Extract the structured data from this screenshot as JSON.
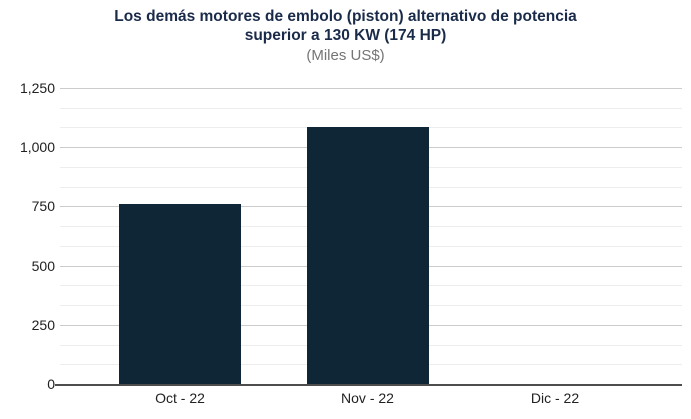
{
  "chart_data": {
    "type": "bar",
    "title": "Los demás motores de embolo (piston) alternativo de potencia superior a 130 KW (174 HP)",
    "title_lines": [
      "Los demás motores de embolo (piston) alternativo de potencia",
      "superior a 130 KW (174 HP)"
    ],
    "subtitle": "(Miles US$)",
    "categories": [
      "Oct - 22",
      "Nov - 22",
      "Dic - 22"
    ],
    "values": [
      760,
      1085,
      0
    ],
    "ylim": [
      0,
      1250
    ],
    "y_tick_values": [
      0,
      250,
      500,
      750,
      1000,
      1250
    ],
    "y_tick_labels": [
      "0",
      "250",
      "500",
      "750",
      "1,000",
      "1,250"
    ],
    "minor_gridlines_between_majors": 2,
    "legend": "none",
    "grid": "on",
    "colors": {
      "bar": "#0f2637",
      "title_text": "#1a2b4a",
      "subtitle_text": "#757575",
      "axis_text": "#212121",
      "major_gridline": "#cccccc",
      "minor_gridline": "#ededed",
      "baseline": "#4d4d4d",
      "background": "#ffffff"
    }
  }
}
